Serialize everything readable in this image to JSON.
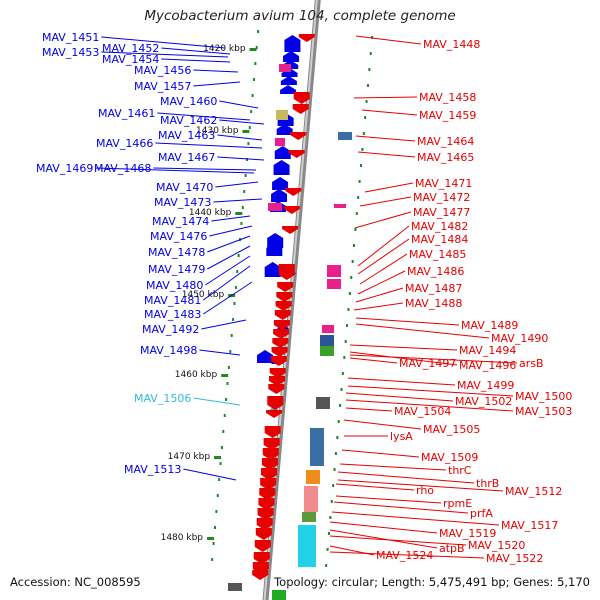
{
  "title": "Mycobacterium avium 104, complete genome",
  "footer": {
    "accession": "Accession: NC_008595",
    "summary": "Topology: circular; Length: 5,475,491 bp; Genes: 5,170"
  },
  "colors": {
    "reverse_strand": "#0000e6",
    "forward_strand": "#e60000",
    "highlight": "#33bbdd",
    "backbone": "#888888",
    "tick": "#228822"
  },
  "scale_labels": [
    "1420 kbp",
    "1430 kbp",
    "1440 kbp",
    "1450 kbp",
    "1460 kbp",
    "1470 kbp",
    "1480 kbp"
  ],
  "left_labels": [
    {
      "text": "MAV_1451",
      "color": "blue"
    },
    {
      "text": "MAV_1452",
      "color": "blue"
    },
    {
      "text": "MAV_1453",
      "color": "blue"
    },
    {
      "text": "MAV_1454",
      "color": "blue"
    },
    {
      "text": "MAV_1456",
      "color": "blue"
    },
    {
      "text": "MAV_1457",
      "color": "blue"
    },
    {
      "text": "MAV_1460",
      "color": "blue"
    },
    {
      "text": "MAV_1461",
      "color": "blue"
    },
    {
      "text": "MAV_1462",
      "color": "blue"
    },
    {
      "text": "MAV_1463",
      "color": "blue"
    },
    {
      "text": "MAV_1466",
      "color": "blue"
    },
    {
      "text": "MAV_1467",
      "color": "blue"
    },
    {
      "text": "MAV_1469",
      "color": "blue"
    },
    {
      "text": "MAV_1468",
      "color": "blue"
    },
    {
      "text": "MAV_1470",
      "color": "blue"
    },
    {
      "text": "MAV_1473",
      "color": "blue"
    },
    {
      "text": "MAV_1474",
      "color": "blue"
    },
    {
      "text": "MAV_1476",
      "color": "blue"
    },
    {
      "text": "MAV_1478",
      "color": "blue"
    },
    {
      "text": "MAV_1479",
      "color": "blue"
    },
    {
      "text": "MAV_1480",
      "color": "blue"
    },
    {
      "text": "MAV_1481",
      "color": "blue"
    },
    {
      "text": "MAV_1483",
      "color": "blue"
    },
    {
      "text": "MAV_1492",
      "color": "blue"
    },
    {
      "text": "MAV_1498",
      "color": "blue"
    },
    {
      "text": "MAV_1506",
      "color": "cyan"
    },
    {
      "text": "MAV_1513",
      "color": "blue"
    }
  ],
  "right_labels": [
    {
      "text": "MAV_1448"
    },
    {
      "text": "MAV_1458"
    },
    {
      "text": "MAV_1459"
    },
    {
      "text": "MAV_1464"
    },
    {
      "text": "MAV_1465"
    },
    {
      "text": "MAV_1471"
    },
    {
      "text": "MAV_1472"
    },
    {
      "text": "MAV_1477"
    },
    {
      "text": "MAV_1482"
    },
    {
      "text": "MAV_1484"
    },
    {
      "text": "MAV_1485"
    },
    {
      "text": "MAV_1486"
    },
    {
      "text": "MAV_1487"
    },
    {
      "text": "MAV_1488"
    },
    {
      "text": "MAV_1489"
    },
    {
      "text": "MAV_1490"
    },
    {
      "text": "MAV_1494"
    },
    {
      "text": "MAV_1496"
    },
    {
      "text": "arsB"
    },
    {
      "text": "MAV_1497"
    },
    {
      "text": "MAV_1499"
    },
    {
      "text": "MAV_1500"
    },
    {
      "text": "MAV_1502"
    },
    {
      "text": "MAV_1503"
    },
    {
      "text": "MAV_1504"
    },
    {
      "text": "MAV_1505"
    },
    {
      "text": "lysA"
    },
    {
      "text": "MAV_1509"
    },
    {
      "text": "thrC"
    },
    {
      "text": "thrB"
    },
    {
      "text": "rho"
    },
    {
      "text": "MAV_1512"
    },
    {
      "text": "rpmE"
    },
    {
      "text": "prfA"
    },
    {
      "text": "MAV_1517"
    },
    {
      "text": "MAV_1519"
    },
    {
      "text": "atpB"
    },
    {
      "text": "MAV_1520"
    },
    {
      "text": "MAV_1524"
    },
    {
      "text": "MAV_1522"
    }
  ]
}
